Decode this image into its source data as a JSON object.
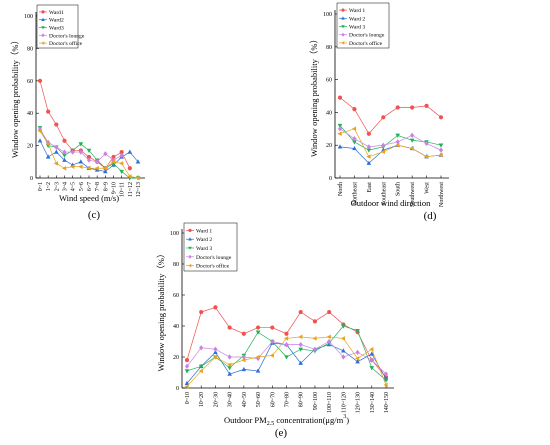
{
  "chart_data": [
    {
      "panel": "(c)",
      "type": "line",
      "xlabel": "Wind speed (m/s)",
      "ylabel": "Window opening probability（%）",
      "ylim": [
        0,
        100
      ],
      "yticks": [
        "0",
        "20",
        "40",
        "60",
        "80",
        "100"
      ],
      "categories": [
        "0~1",
        "1~2",
        "2~3",
        "3~4",
        "4~5",
        "5~6",
        "6~7",
        "7~8",
        "8~9",
        "9~10",
        "10~11",
        "11~12",
        "12~13"
      ],
      "legend_position": "top-left",
      "series": [
        {
          "name": "Ward1",
          "color": "#f0524f",
          "marker": "circle",
          "values": [
            60,
            41,
            33,
            23,
            17,
            17,
            13,
            10,
            6,
            13,
            16,
            6,
            null
          ]
        },
        {
          "name": "Ward2",
          "color": "#2f6fd6",
          "marker": "triangle-up",
          "values": [
            23,
            13,
            16,
            11,
            8,
            10,
            6,
            5,
            4,
            8,
            13,
            16,
            10
          ]
        },
        {
          "name": "Ward3",
          "color": "#21b15a",
          "marker": "triangle-down",
          "values": [
            31,
            20,
            19,
            14,
            17,
            21,
            17,
            11,
            6,
            9,
            4,
            0,
            0
          ]
        },
        {
          "name": "Doctor's lounge",
          "color": "#c982e0",
          "marker": "diamond",
          "values": [
            30,
            22,
            19,
            16,
            16,
            16,
            11,
            10,
            15,
            11,
            14,
            null,
            null
          ]
        },
        {
          "name": "Doctor's office",
          "color": "#e6a321",
          "marker": "triangle-left",
          "values": [
            29,
            21,
            9,
            6,
            7,
            7,
            6,
            6,
            6,
            10,
            9,
            1,
            0
          ]
        }
      ]
    },
    {
      "panel": "(d)",
      "type": "line",
      "xlabel": "Outdoor wind direction",
      "ylabel": "Window opening probability（%）",
      "ylim": [
        0,
        100
      ],
      "yticks": [
        "0",
        "20",
        "40",
        "60",
        "80",
        "100"
      ],
      "categories": [
        "North",
        "Northeast",
        "East",
        "Southeast",
        "South",
        "Southwest",
        "West",
        "Northwest"
      ],
      "legend_position": "top-left",
      "series": [
        {
          "name": "Ward 1",
          "color": "#f0524f",
          "marker": "circle",
          "values": [
            49,
            42,
            27,
            37,
            43,
            43,
            44,
            37
          ]
        },
        {
          "name": "Ward 2",
          "color": "#2f6fd6",
          "marker": "triangle-up",
          "values": [
            19,
            18,
            9,
            17,
            20,
            18,
            13,
            14
          ]
        },
        {
          "name": "Ward 3",
          "color": "#21b15a",
          "marker": "triangle-down",
          "values": [
            32,
            22,
            17,
            19,
            26,
            23,
            22,
            20
          ]
        },
        {
          "name": "Doctor's lounge",
          "color": "#c982e0",
          "marker": "diamond",
          "values": [
            30,
            24,
            19,
            20,
            22,
            26,
            21,
            17
          ]
        },
        {
          "name": "Doctor's office",
          "color": "#e6a321",
          "marker": "triangle-left",
          "values": [
            27,
            30,
            13,
            16,
            20,
            18,
            13,
            14
          ]
        }
      ]
    },
    {
      "panel": "(e)",
      "type": "line",
      "xlabel_prefix": "Outdoor PM",
      "xlabel_sub": "2.5",
      "xlabel_suffix": " concentration(μg/m",
      "xlabel_sup": "3",
      "xlabel_end": ")",
      "ylabel": "Window opening probability（%）",
      "ylim": [
        0,
        100
      ],
      "yticks": [
        "0",
        "20",
        "40",
        "60",
        "80",
        "100"
      ],
      "categories": [
        "0~10",
        "10~20",
        "20~30",
        "30~40",
        "40~50",
        "50~60",
        "60~70",
        "70~80",
        "80~90",
        "90~100",
        "100~110",
        "110~120",
        "120~130",
        "130~140",
        "140~150"
      ],
      "legend_position": "top-left",
      "series": [
        {
          "name": "Ward 1",
          "color": "#f0524f",
          "marker": "circle",
          "values": [
            18,
            49,
            52,
            39,
            35,
            39,
            39,
            35,
            49,
            43,
            49,
            41,
            36,
            18,
            7
          ]
        },
        {
          "name": "Ward 2",
          "color": "#2f6fd6",
          "marker": "triangle-up",
          "values": [
            3,
            14,
            23,
            9,
            12,
            11,
            29,
            28,
            16,
            25,
            28,
            24,
            17,
            22,
            6
          ]
        },
        {
          "name": "Ward 3",
          "color": "#21b15a",
          "marker": "triangle-down",
          "values": [
            11,
            14,
            20,
            13,
            21,
            36,
            30,
            20,
            25,
            24,
            29,
            40,
            37,
            13,
            5
          ]
        },
        {
          "name": "Doctor's lounge",
          "color": "#c982e0",
          "marker": "diamond",
          "values": [
            14,
            26,
            25,
            20,
            20,
            19,
            30,
            28,
            28,
            25,
            30,
            20,
            23,
            18,
            9
          ]
        },
        {
          "name": "Doctor's office",
          "color": "#e6a321",
          "marker": "triangle-left",
          "values": [
            1,
            11,
            20,
            15,
            18,
            20,
            21,
            32,
            33,
            32,
            33,
            32,
            19,
            25,
            2
          ]
        }
      ]
    }
  ]
}
